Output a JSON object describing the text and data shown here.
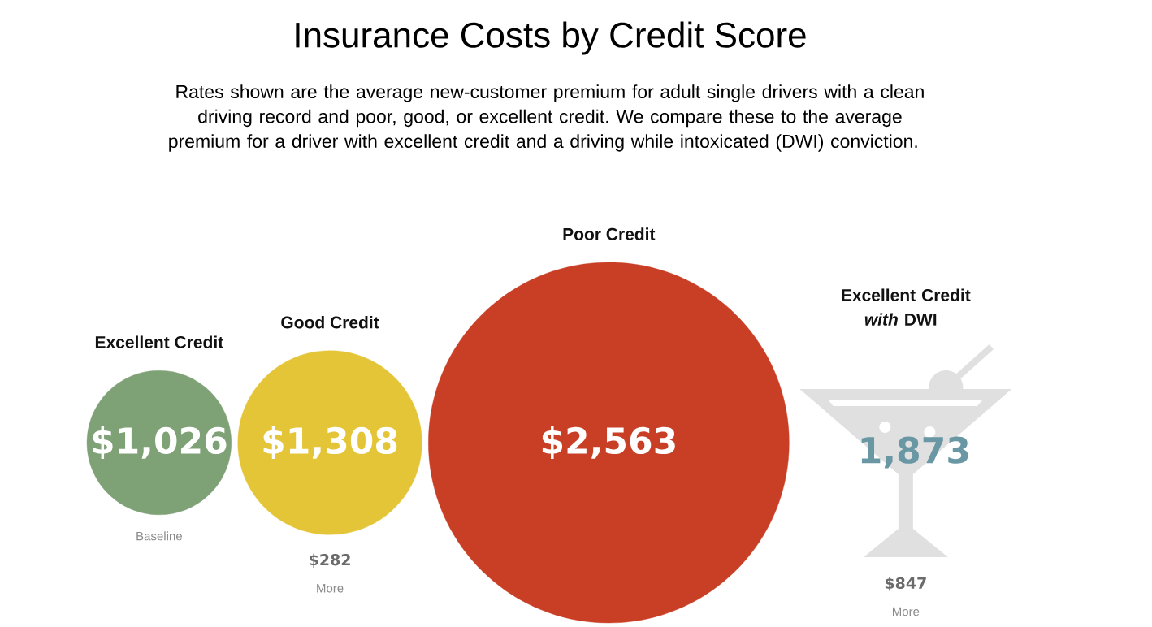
{
  "chart_data": {
    "type": "other",
    "title": "Insurance Costs by Credit Score",
    "subtitle": "Rates shown are the average new-customer premium for adult single drivers with a clean driving record and poor, good, or excellent credit. We compare these to the average premium for a driver with excellent credit and a driving while intoxicated (DWI) conviction.",
    "categories": [
      "Excellent Credit",
      "Good Credit",
      "Poor Credit",
      "Excellent Credit *with* DWI"
    ],
    "values": [
      1026,
      1308,
      2563,
      1873
    ],
    "value_labels": [
      "$1,026",
      "$1,308",
      "$2,563",
      "1,873"
    ],
    "colors": [
      "#7fa176",
      "#e4c537",
      "#c93f26",
      "#e0e0e0"
    ],
    "annotations": [
      "Baseline",
      "$282",
      "More",
      "$847",
      "More"
    ]
  }
}
